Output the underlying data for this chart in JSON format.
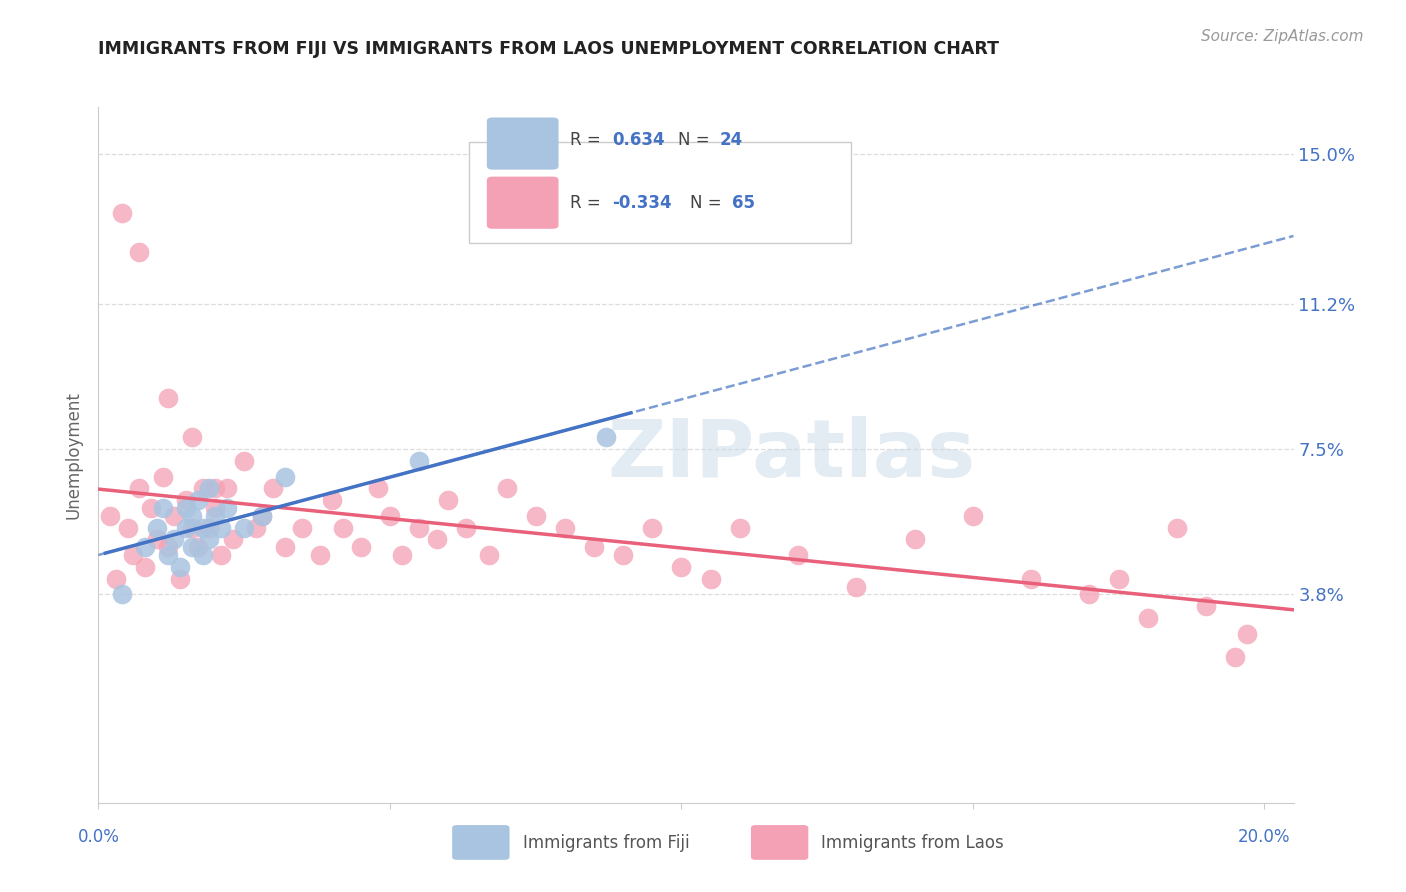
{
  "title": "IMMIGRANTS FROM FIJI VS IMMIGRANTS FROM LAOS UNEMPLOYMENT CORRELATION CHART",
  "source": "Source: ZipAtlas.com",
  "ylabel": "Unemployment",
  "ytick_vals": [
    0.0,
    0.038,
    0.075,
    0.112,
    0.15
  ],
  "ytick_labels": [
    "",
    "3.8%",
    "7.5%",
    "11.2%",
    "15.0%"
  ],
  "xlim": [
    0.0,
    0.205
  ],
  "ylim": [
    -0.015,
    0.162
  ],
  "fiji_R": "0.634",
  "fiji_N": "24",
  "laos_R": "-0.334",
  "laos_N": "65",
  "fiji_scatter_color": "#a8c4e0",
  "laos_scatter_color": "#f4a0b5",
  "fiji_line_color": "#4472c4",
  "laos_line_color": "#e8607a",
  "watermark_color": "#c8d8e8",
  "fiji_x": [
    0.004,
    0.008,
    0.01,
    0.011,
    0.012,
    0.013,
    0.014,
    0.015,
    0.015,
    0.016,
    0.016,
    0.017,
    0.018,
    0.018,
    0.019,
    0.019,
    0.02,
    0.021,
    0.022,
    0.025,
    0.028,
    0.032,
    0.055,
    0.087
  ],
  "fiji_y": [
    0.038,
    0.05,
    0.055,
    0.06,
    0.048,
    0.052,
    0.045,
    0.055,
    0.06,
    0.05,
    0.058,
    0.062,
    0.048,
    0.055,
    0.052,
    0.065,
    0.058,
    0.055,
    0.06,
    0.055,
    0.058,
    0.068,
    0.072,
    0.078
  ],
  "laos_x": [
    0.002,
    0.003,
    0.005,
    0.006,
    0.007,
    0.008,
    0.009,
    0.01,
    0.011,
    0.012,
    0.013,
    0.014,
    0.015,
    0.016,
    0.017,
    0.018,
    0.019,
    0.02,
    0.021,
    0.022,
    0.023,
    0.025,
    0.027,
    0.028,
    0.03,
    0.032,
    0.035,
    0.038,
    0.04,
    0.042,
    0.045,
    0.048,
    0.05,
    0.052,
    0.055,
    0.058,
    0.06,
    0.063,
    0.067,
    0.07,
    0.075,
    0.08,
    0.085,
    0.09,
    0.095,
    0.1,
    0.105,
    0.11,
    0.12,
    0.13,
    0.14,
    0.15,
    0.16,
    0.17,
    0.175,
    0.18,
    0.185,
    0.19,
    0.195,
    0.197,
    0.004,
    0.007,
    0.012,
    0.016,
    0.02
  ],
  "laos_y": [
    0.058,
    0.042,
    0.055,
    0.048,
    0.065,
    0.045,
    0.06,
    0.052,
    0.068,
    0.05,
    0.058,
    0.042,
    0.062,
    0.055,
    0.05,
    0.065,
    0.055,
    0.06,
    0.048,
    0.065,
    0.052,
    0.072,
    0.055,
    0.058,
    0.065,
    0.05,
    0.055,
    0.048,
    0.062,
    0.055,
    0.05,
    0.065,
    0.058,
    0.048,
    0.055,
    0.052,
    0.062,
    0.055,
    0.048,
    0.065,
    0.058,
    0.055,
    0.05,
    0.048,
    0.055,
    0.045,
    0.042,
    0.055,
    0.048,
    0.04,
    0.052,
    0.058,
    0.042,
    0.038,
    0.042,
    0.032,
    0.055,
    0.035,
    0.022,
    0.028,
    0.135,
    0.125,
    0.088,
    0.078,
    0.065
  ]
}
